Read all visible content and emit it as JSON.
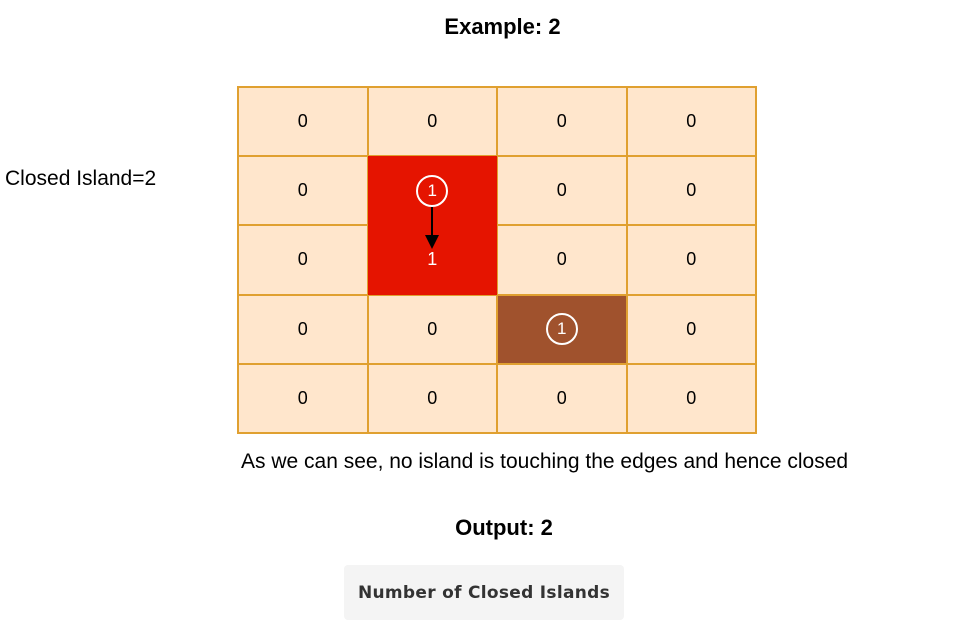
{
  "title": "Example: 2",
  "side_label": "Closed Island=2",
  "grid": [
    [
      "0",
      "0",
      "0",
      "0"
    ],
    [
      "0",
      "1",
      "0",
      "0"
    ],
    [
      "0",
      "1",
      "0",
      "0"
    ],
    [
      "0",
      "0",
      "1",
      "0"
    ],
    [
      "0",
      "0",
      "0",
      "0"
    ]
  ],
  "colors": {
    "water": "#ffe6cc",
    "island_1": "#e51400",
    "island_2": "#a0522d",
    "border": "#e0a030"
  },
  "caption": "As we can see, no island is touching the edges and hence closed",
  "output": "Output: 2",
  "button_label": "Number of Closed Islands"
}
